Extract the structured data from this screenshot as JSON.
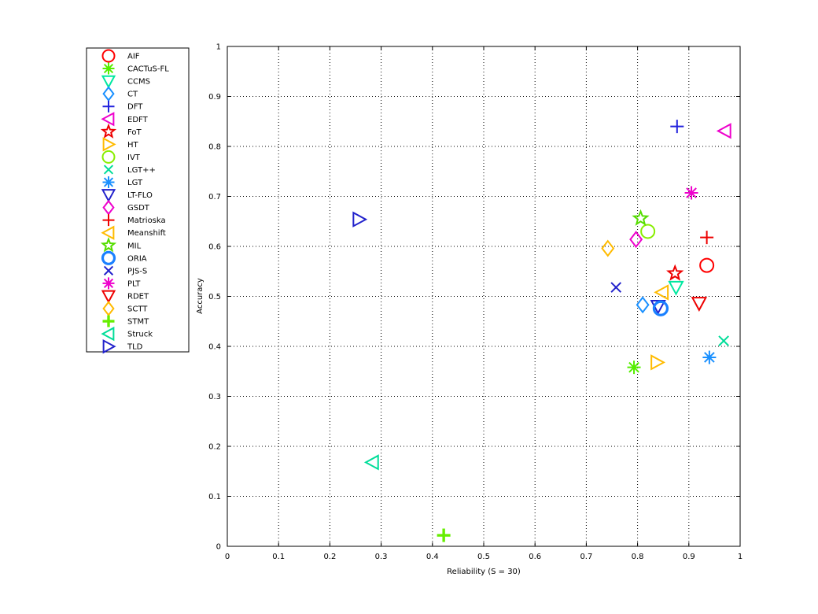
{
  "chart_data": {
    "type": "scatter",
    "title": "",
    "xlabel": "Reliability (S = 30)",
    "ylabel": "Accuracy",
    "xlim": [
      0,
      1
    ],
    "ylim": [
      0,
      1
    ],
    "x_ticks": [
      "0",
      "0.1",
      "0.2",
      "0.3",
      "0.4",
      "0.5",
      "0.6",
      "0.7",
      "0.8",
      "0.9",
      "1"
    ],
    "y_ticks": [
      "0",
      "0.1",
      "0.2",
      "0.3",
      "0.4",
      "0.5",
      "0.6",
      "0.7",
      "0.8",
      "0.9",
      "1"
    ],
    "grid": true,
    "grid_style": "dotted",
    "legend_position": "outside-left",
    "series": [
      {
        "name": "AIF",
        "marker": "circle",
        "color": "#ff0000",
        "x": 0.935,
        "y": 0.562
      },
      {
        "name": "CACTuS-FL",
        "marker": "asterisk",
        "color": "#55ee00",
        "x": 0.793,
        "y": 0.358
      },
      {
        "name": "CCMS",
        "marker": "triangle-down",
        "color": "#00e8a0",
        "x": 0.875,
        "y": 0.518
      },
      {
        "name": "CT",
        "marker": "diamond",
        "color": "#1a90ff",
        "x": 0.81,
        "y": 0.483
      },
      {
        "name": "DFT",
        "marker": "plus",
        "color": "#2222dd",
        "x": 0.877,
        "y": 0.84
      },
      {
        "name": "EDFT",
        "marker": "triangle-left",
        "color": "#ee00cc",
        "x": 0.97,
        "y": 0.831
      },
      {
        "name": "FoT",
        "marker": "star",
        "color": "#ee0000",
        "x": 0.873,
        "y": 0.546
      },
      {
        "name": "HT",
        "marker": "triangle-right",
        "color": "#ffbb00",
        "x": 0.838,
        "y": 0.368
      },
      {
        "name": "IVT",
        "marker": "circle",
        "color": "#88ee00",
        "x": 0.82,
        "y": 0.63
      },
      {
        "name": "LGT++",
        "marker": "x",
        "color": "#00dd99",
        "x": 0.968,
        "y": 0.411
      },
      {
        "name": "LGT",
        "marker": "asterisk",
        "color": "#1a90ff",
        "x": 0.94,
        "y": 0.378
      },
      {
        "name": "LT-FLO",
        "marker": "triangle-down",
        "color": "#2222cc",
        "x": 0.84,
        "y": 0.48
      },
      {
        "name": "GSDT",
        "marker": "diamond",
        "color": "#ee00cc",
        "x": 0.797,
        "y": 0.614
      },
      {
        "name": "Matrioska",
        "marker": "plus",
        "color": "#ee0000",
        "x": 0.935,
        "y": 0.618
      },
      {
        "name": "Meanshift",
        "marker": "triangle-left",
        "color": "#ffbb00",
        "x": 0.848,
        "y": 0.508
      },
      {
        "name": "MIL",
        "marker": "star",
        "color": "#55dd00",
        "x": 0.806,
        "y": 0.656
      },
      {
        "name": "ORIA",
        "marker": "circle-bold",
        "color": "#1a80ff",
        "x": 0.845,
        "y": 0.476
      },
      {
        "name": "PJS-S",
        "marker": "x",
        "color": "#2222cc",
        "x": 0.758,
        "y": 0.518
      },
      {
        "name": "PLT",
        "marker": "asterisk",
        "color": "#ee00cc",
        "x": 0.905,
        "y": 0.707
      },
      {
        "name": "RDET",
        "marker": "triangle-down",
        "color": "#ee0000",
        "x": 0.92,
        "y": 0.486
      },
      {
        "name": "SCTT",
        "marker": "diamond",
        "color": "#ffbb00",
        "x": 0.742,
        "y": 0.596
      },
      {
        "name": "STMT",
        "marker": "plus-bold",
        "color": "#66ee00",
        "x": 0.422,
        "y": 0.022
      },
      {
        "name": "Struck",
        "marker": "triangle-left",
        "color": "#00dd99",
        "x": 0.283,
        "y": 0.168
      },
      {
        "name": "TLD",
        "marker": "triangle-right",
        "color": "#2222cc",
        "x": 0.257,
        "y": 0.654
      }
    ]
  }
}
